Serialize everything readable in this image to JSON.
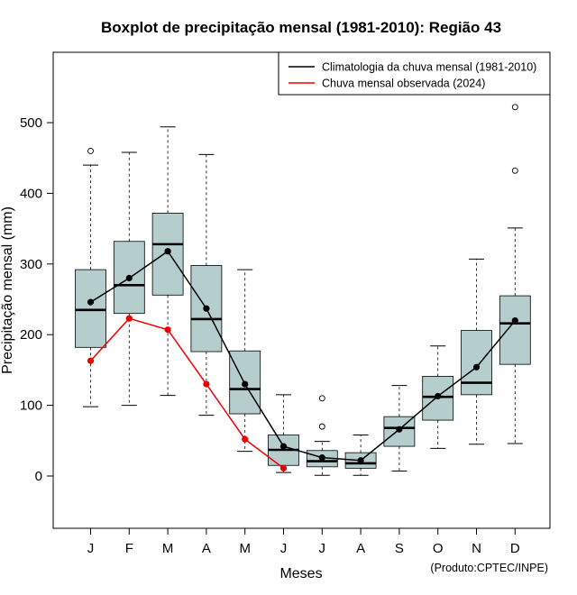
{
  "chart_data": {
    "type": "boxplot",
    "title": "Boxplot de precipitação mensal (1981-2010): Região 43",
    "xlabel": "Meses",
    "ylabel": "Precipitação mensal (mm)",
    "credit": "(Produto:CPTEC/INPE)",
    "ylim": [
      -75,
      600
    ],
    "yticks": [
      0,
      100,
      200,
      300,
      400,
      500
    ],
    "categories": [
      "J",
      "F",
      "M",
      "A",
      "M",
      "J",
      "J",
      "A",
      "S",
      "O",
      "N",
      "D"
    ],
    "boxes": [
      {
        "min": 98,
        "q1": 182,
        "median": 235,
        "q3": 292,
        "max": 440,
        "outliers": [
          460
        ]
      },
      {
        "min": 100,
        "q1": 230,
        "median": 270,
        "q3": 332,
        "max": 458,
        "outliers": []
      },
      {
        "min": 114,
        "q1": 256,
        "median": 328,
        "q3": 372,
        "max": 494,
        "outliers": []
      },
      {
        "min": 86,
        "q1": 176,
        "median": 222,
        "q3": 298,
        "max": 455,
        "outliers": []
      },
      {
        "min": 35,
        "q1": 88,
        "median": 123,
        "q3": 177,
        "max": 292,
        "outliers": []
      },
      {
        "min": 5,
        "q1": 15,
        "median": 37,
        "q3": 58,
        "max": 115,
        "outliers": []
      },
      {
        "min": 1,
        "q1": 13,
        "median": 21,
        "q3": 36,
        "max": 49,
        "outliers": [
          70,
          110
        ]
      },
      {
        "min": 1,
        "q1": 11,
        "median": 18,
        "q3": 33,
        "max": 58,
        "outliers": []
      },
      {
        "min": 7,
        "q1": 42,
        "median": 68,
        "q3": 84,
        "max": 128,
        "outliers": []
      },
      {
        "min": 39,
        "q1": 79,
        "median": 112,
        "q3": 141,
        "max": 184,
        "outliers": []
      },
      {
        "min": 45,
        "q1": 115,
        "median": 132,
        "q3": 206,
        "max": 307,
        "outliers": []
      },
      {
        "min": 46,
        "q1": 158,
        "median": 216,
        "q3": 255,
        "max": 351,
        "outliers": [
          432,
          522
        ]
      }
    ],
    "series": [
      {
        "name": "Climatologia da chuva mensal (1981-2010)",
        "color": "#000000",
        "values": [
          246,
          280,
          318,
          237,
          130,
          42,
          26,
          22,
          66,
          113,
          154,
          220
        ]
      },
      {
        "name": "Chuva mensal observada (2024)",
        "color": "#ee0000",
        "values": [
          163,
          223,
          207,
          130,
          52,
          11,
          null,
          null,
          null,
          null,
          null,
          null
        ]
      }
    ],
    "legend_position": "top-right",
    "box_fill": "#b5cdcd"
  }
}
